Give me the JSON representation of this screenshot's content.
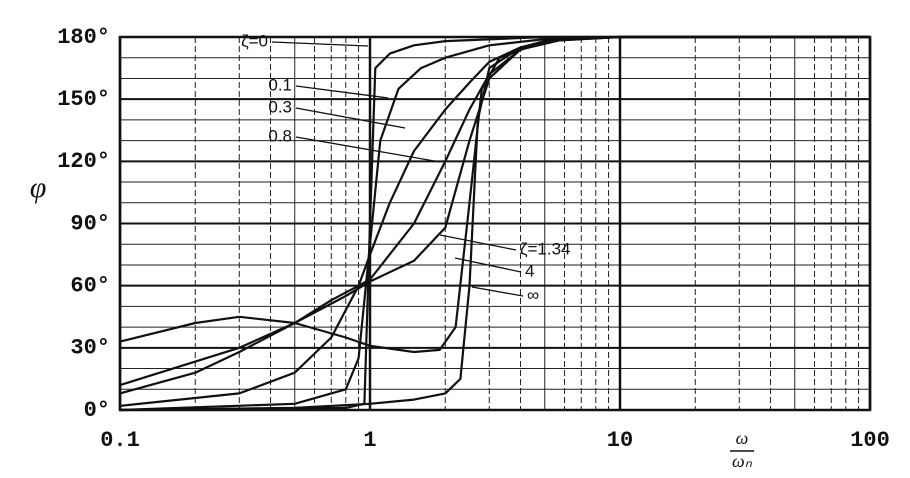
{
  "chart_data": {
    "type": "line",
    "log_x": true,
    "grid": true,
    "minor_grid": true,
    "y_label": "φ",
    "x_label_numerator": "ω",
    "x_label_denominator": "ωₙ",
    "xlim": [
      0.1,
      100
    ],
    "xticks": [
      0.1,
      1,
      10,
      100
    ],
    "ylim": [
      0,
      180
    ],
    "yticks": [
      {
        "value": 0,
        "label": "0°"
      },
      {
        "value": 30,
        "label": "30°"
      },
      {
        "value": 60,
        "label": "60°"
      },
      {
        "value": 90,
        "label": "90°"
      },
      {
        "value": 120,
        "label": "120°"
      },
      {
        "value": 150,
        "label": "150°"
      },
      {
        "value": 180,
        "label": "180°"
      }
    ],
    "series": [
      {
        "name": "ζ=0",
        "color": "#111111",
        "x": [
          0.1,
          0.8,
          0.95,
          1,
          1.05,
          1.2,
          1.5,
          2,
          5,
          100
        ],
        "values": [
          0,
          1,
          3,
          90,
          165,
          172,
          176,
          178,
          180,
          180
        ]
      },
      {
        "name": "0.1",
        "color": "#111111",
        "x": [
          0.1,
          0.5,
          0.8,
          0.9,
          1,
          1.1,
          1.3,
          1.6,
          2,
          3,
          5,
          10,
          100
        ],
        "values": [
          0,
          3,
          10,
          25,
          80,
          130,
          155,
          165,
          170,
          176,
          179,
          180,
          180
        ]
      },
      {
        "name": "0.3",
        "color": "#111111",
        "x": [
          0.1,
          0.3,
          0.5,
          0.7,
          0.9,
          1,
          1.2,
          1.5,
          2,
          2.5,
          3,
          4,
          5,
          10,
          100
        ],
        "values": [
          2,
          8,
          18,
          35,
          60,
          75,
          100,
          125,
          145,
          158,
          168,
          175,
          178,
          180,
          180
        ]
      },
      {
        "name": "0.8",
        "color": "#111111",
        "x": [
          0.1,
          0.2,
          0.3,
          0.5,
          0.7,
          0.9,
          1,
          1.5,
          2,
          2.5,
          3,
          4,
          6,
          10,
          100
        ],
        "values": [
          8,
          18,
          28,
          42,
          53,
          60,
          63,
          90,
          120,
          145,
          162,
          174,
          179,
          180,
          180
        ]
      },
      {
        "name": "ζ=1.34",
        "color": "#111111",
        "x": [
          0.1,
          0.3,
          0.5,
          0.8,
          1,
          1.5,
          2,
          2.5,
          3,
          4,
          6,
          10,
          100
        ],
        "values": [
          12,
          30,
          42,
          55,
          62,
          72,
          88,
          130,
          160,
          174,
          179,
          180,
          180
        ]
      },
      {
        "name": "4",
        "color": "#111111",
        "x": [
          0.1,
          0.2,
          0.3,
          0.5,
          0.8,
          1,
          1.5,
          1.9,
          2.2,
          2.5,
          2.8,
          3.3,
          5,
          10,
          100
        ],
        "values": [
          33,
          42,
          45,
          42,
          35,
          31,
          28,
          29,
          40,
          100,
          155,
          170,
          178,
          180,
          180
        ]
      },
      {
        "name": "∞",
        "color": "#111111",
        "x": [
          0.1,
          0.5,
          1,
          1.5,
          2,
          2.3,
          2.5,
          2.7,
          3,
          4,
          6,
          10,
          100
        ],
        "values": [
          0,
          1,
          3,
          5,
          8,
          15,
          60,
          140,
          165,
          175,
          179,
          180,
          180
        ]
      }
    ]
  }
}
